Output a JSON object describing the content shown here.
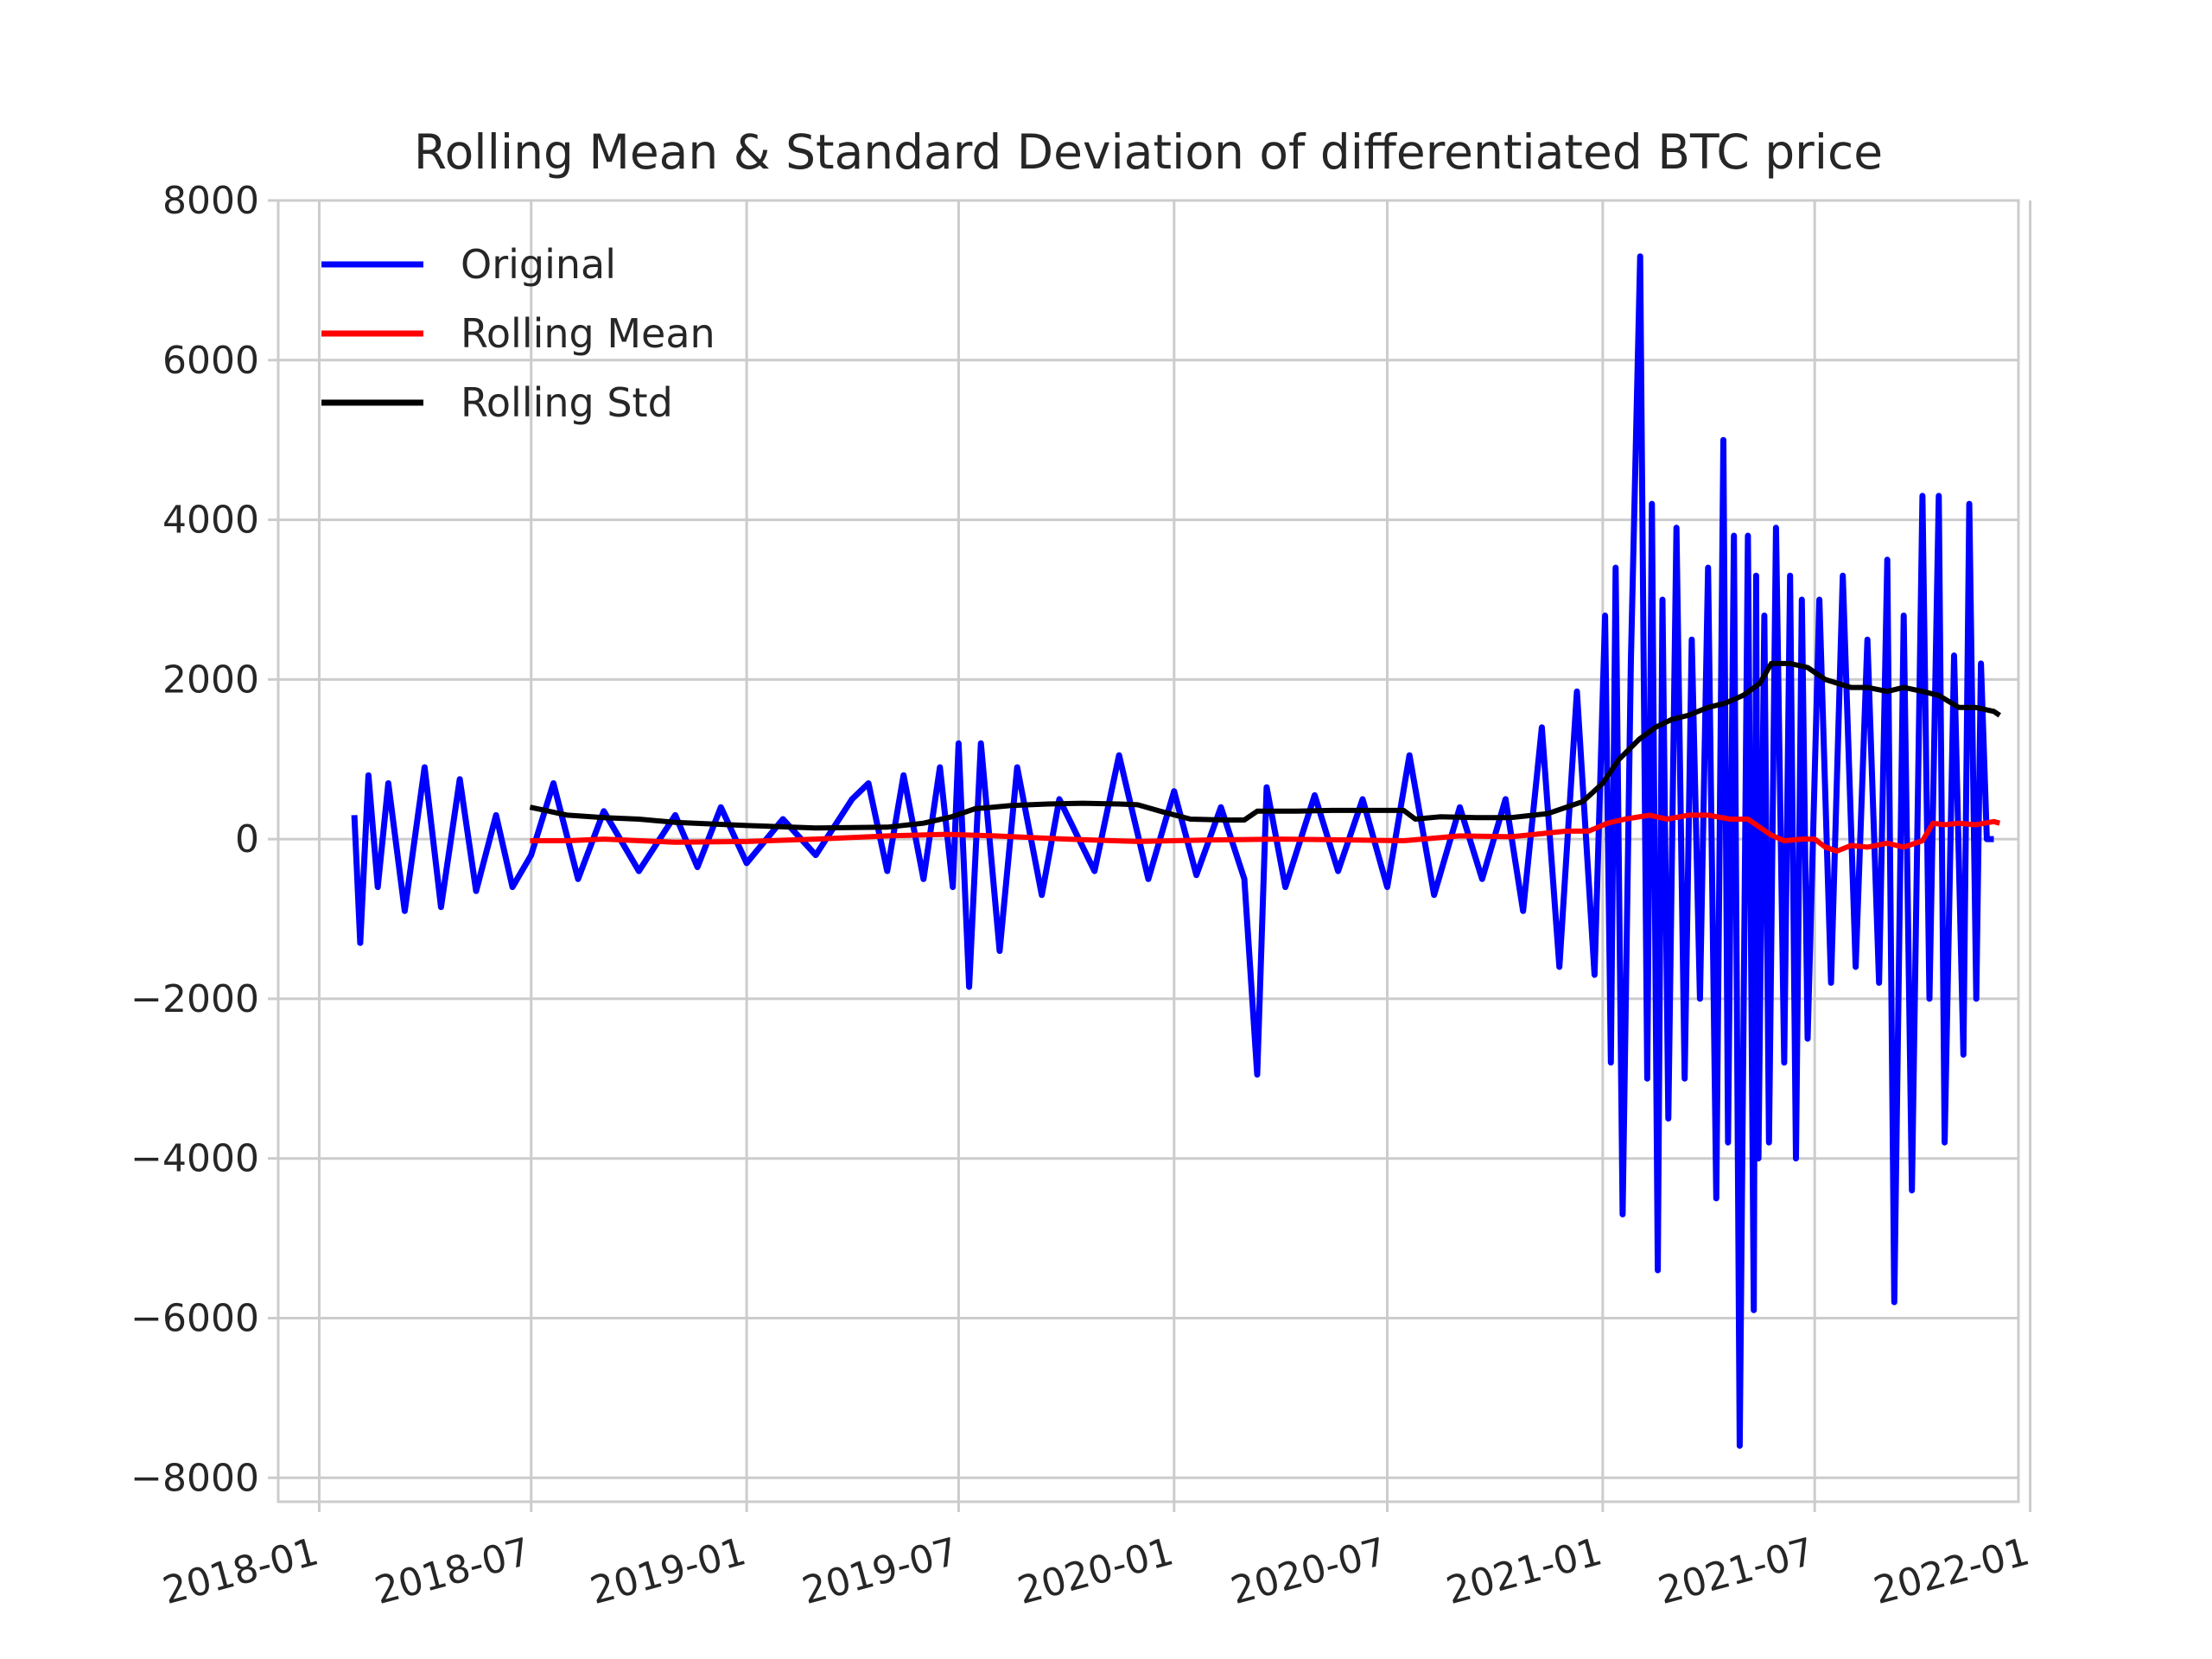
{
  "chart_data": {
    "type": "line",
    "title": "Rolling Mean & Standard Deviation of differentiated BTC price",
    "xlabel": "",
    "ylabel": "",
    "xlim": [
      "2017-11-27",
      "2021-12-22"
    ],
    "ylim": [
      -8300,
      8000
    ],
    "xticks": [
      "2018-01",
      "2018-07",
      "2019-01",
      "2019-07",
      "2020-01",
      "2020-07",
      "2021-01",
      "2021-07",
      "2022-01"
    ],
    "yticks": [
      8000,
      6000,
      4000,
      2000,
      0,
      -2000,
      -4000,
      -6000,
      -8000
    ],
    "ytick_labels": [
      "8000",
      "6000",
      "4000",
      "2000",
      "0",
      "−2000",
      "−4000",
      "−6000",
      "−8000"
    ],
    "grid": true,
    "legend_position": "upper-left",
    "series": [
      {
        "name": "Original",
        "color": "#0000ff",
        "x": [
          "2018-01-31",
          "2018-02-05",
          "2018-02-12",
          "2018-02-20",
          "2018-03-01",
          "2018-03-15",
          "2018-04-01",
          "2018-04-15",
          "2018-05-01",
          "2018-05-15",
          "2018-06-01",
          "2018-06-15",
          "2018-07-01",
          "2018-07-20",
          "2018-08-10",
          "2018-09-01",
          "2018-10-01",
          "2018-11-01",
          "2018-11-20",
          "2018-12-10",
          "2019-01-01",
          "2019-02-01",
          "2019-03-01",
          "2019-04-01",
          "2019-04-15",
          "2019-05-01",
          "2019-05-15",
          "2019-06-01",
          "2019-06-15",
          "2019-06-26",
          "2019-07-01",
          "2019-07-10",
          "2019-07-20",
          "2019-08-05",
          "2019-08-20",
          "2019-09-10",
          "2019-09-25",
          "2019-10-25",
          "2019-11-15",
          "2019-12-10",
          "2020-01-01",
          "2020-01-20",
          "2020-02-10",
          "2020-03-01",
          "2020-03-12",
          "2020-03-20",
          "2020-04-05",
          "2020-04-30",
          "2020-05-20",
          "2020-06-10",
          "2020-07-01",
          "2020-07-20",
          "2020-08-10",
          "2020-09-01",
          "2020-09-20",
          "2020-10-10",
          "2020-10-25",
          "2020-11-10",
          "2020-11-25",
          "2020-12-10",
          "2020-12-25",
          "2021-01-03",
          "2021-01-08",
          "2021-01-12",
          "2021-01-18",
          "2021-01-25",
          "2021-02-02",
          "2021-02-08",
          "2021-02-12",
          "2021-02-17",
          "2021-02-21",
          "2021-02-26",
          "2021-03-05",
          "2021-03-12",
          "2021-03-18",
          "2021-03-25",
          "2021-04-01",
          "2021-04-08",
          "2021-04-14",
          "2021-04-18",
          "2021-04-23",
          "2021-04-28",
          "2021-05-05",
          "2021-05-10",
          "2021-05-12",
          "2021-05-14",
          "2021-05-19",
          "2021-05-23",
          "2021-05-29",
          "2021-06-05",
          "2021-06-10",
          "2021-06-15",
          "2021-06-20",
          "2021-06-25",
          "2021-07-05",
          "2021-07-15",
          "2021-07-25",
          "2021-08-05",
          "2021-08-15",
          "2021-08-25",
          "2021-09-01",
          "2021-09-07",
          "2021-09-15",
          "2021-09-22",
          "2021-10-01",
          "2021-10-07",
          "2021-10-15",
          "2021-10-20",
          "2021-10-28",
          "2021-11-05",
          "2021-11-10",
          "2021-11-16",
          "2021-11-20",
          "2021-11-25",
          "2021-12-01"
        ],
        "y": [
          300,
          -1300,
          800,
          -600,
          700,
          -900,
          900,
          -850,
          750,
          -650,
          300,
          -600,
          -200,
          700,
          -500,
          350,
          -400,
          300,
          -350,
          400,
          -300,
          250,
          -200,
          500,
          700,
          -400,
          800,
          -500,
          900,
          -600,
          1200,
          -1850,
          1200,
          -1400,
          900,
          -700,
          500,
          -400,
          1050,
          -500,
          600,
          -450,
          400,
          -500,
          -2950,
          650,
          -600,
          550,
          -400,
          500,
          -600,
          1050,
          -700,
          400,
          -500,
          500,
          -900,
          1400,
          -1600,
          1850,
          -1700,
          2800,
          -2800,
          3400,
          -4700,
          2200,
          7300,
          -3000,
          4200,
          -5400,
          3000,
          -3500,
          3900,
          -3000,
          2500,
          -2000,
          3400,
          -4500,
          5000,
          -3800,
          3800,
          -7600,
          3800,
          -5900,
          3300,
          -4000,
          2800,
          -3800,
          3900,
          -2800,
          3300,
          -4000,
          3000,
          -2500,
          3000,
          -1800,
          3300,
          -1600,
          2500,
          -1800,
          3500,
          -5800,
          2800,
          -4400,
          4300,
          -2000,
          4300,
          -3800,
          2300,
          -2700,
          4200,
          -2000,
          2200,
          0,
          0
        ]
      },
      {
        "name": "Rolling Mean",
        "color": "#ff0000",
        "x": [
          "2018-06-30",
          "2018-08-01",
          "2018-09-01",
          "2018-11-01",
          "2019-01-01",
          "2019-03-01",
          "2019-05-01",
          "2019-06-20",
          "2019-08-01",
          "2019-10-01",
          "2019-12-01",
          "2020-02-01",
          "2020-04-01",
          "2020-06-01",
          "2020-07-15",
          "2020-09-01",
          "2020-10-15",
          "2020-12-01",
          "2020-12-20",
          "2021-01-05",
          "2021-01-20",
          "2021-02-10",
          "2021-02-25",
          "2021-03-15",
          "2021-04-01",
          "2021-04-20",
          "2021-05-05",
          "2021-05-15",
          "2021-05-25",
          "2021-06-05",
          "2021-06-20",
          "2021-07-01",
          "2021-07-10",
          "2021-07-20",
          "2021-08-01",
          "2021-08-15",
          "2021-09-01",
          "2021-09-15",
          "2021-10-01",
          "2021-10-10",
          "2021-10-20",
          "2021-11-01",
          "2021-11-15",
          "2021-12-01",
          "2021-12-06"
        ],
        "y": [
          -20,
          -20,
          0,
          -40,
          -30,
          0,
          40,
          60,
          40,
          0,
          -30,
          -10,
          0,
          -10,
          -20,
          40,
          30,
          100,
          100,
          200,
          250,
          300,
          250,
          300,
          300,
          250,
          250,
          150,
          50,
          -20,
          0,
          0,
          -100,
          -150,
          -80,
          -100,
          -50,
          -100,
          -20,
          200,
          180,
          200,
          180,
          220,
          200
        ]
      },
      {
        "name": "Rolling Std",
        "color": "#000000",
        "x": [
          "2018-06-30",
          "2018-08-01",
          "2018-09-01",
          "2018-10-01",
          "2018-11-01",
          "2019-01-01",
          "2019-03-01",
          "2019-05-01",
          "2019-06-01",
          "2019-06-25",
          "2019-07-15",
          "2019-08-15",
          "2019-09-15",
          "2019-10-15",
          "2019-11-15",
          "2019-12-01",
          "2019-12-20",
          "2020-01-15",
          "2020-02-15",
          "2020-03-01",
          "2020-03-12",
          "2020-04-15",
          "2020-05-15",
          "2020-06-15",
          "2020-07-15",
          "2020-07-25",
          "2020-08-15",
          "2020-09-15",
          "2020-10-15",
          "2020-11-15",
          "2020-12-15",
          "2021-01-01",
          "2021-01-15",
          "2021-02-01",
          "2021-02-15",
          "2021-03-01",
          "2021-03-15",
          "2021-04-01",
          "2021-04-15",
          "2021-05-01",
          "2021-05-15",
          "2021-05-25",
          "2021-06-10",
          "2021-06-25",
          "2021-07-10",
          "2021-08-01",
          "2021-08-15",
          "2021-09-01",
          "2021-09-15",
          "2021-10-01",
          "2021-10-15",
          "2021-11-01",
          "2021-11-15",
          "2021-12-01",
          "2021-12-06"
        ],
        "y": [
          400,
          300,
          270,
          250,
          210,
          170,
          140,
          150,
          200,
          280,
          380,
          420,
          440,
          450,
          440,
          430,
          350,
          250,
          240,
          240,
          350,
          350,
          360,
          360,
          360,
          250,
          280,
          270,
          270,
          320,
          470,
          700,
          1000,
          1250,
          1400,
          1500,
          1550,
          1650,
          1700,
          1800,
          1950,
          2200,
          2200,
          2150,
          2000,
          1900,
          1900,
          1850,
          1900,
          1850,
          1800,
          1650,
          1650,
          1600,
          1550
        ]
      }
    ]
  }
}
